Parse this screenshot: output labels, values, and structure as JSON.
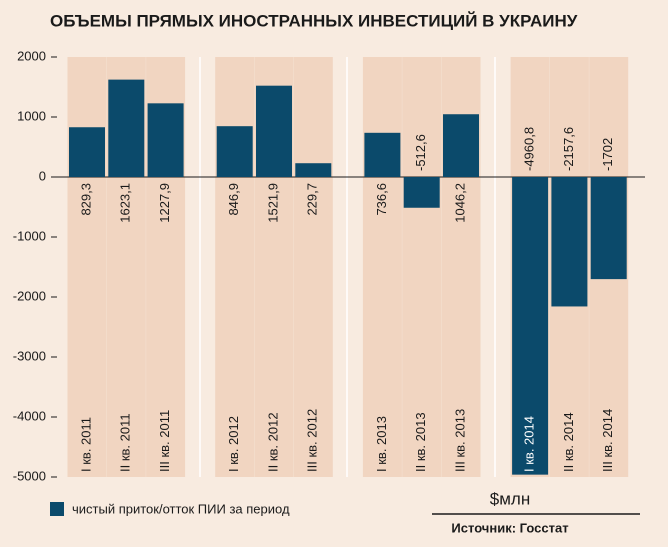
{
  "chart_data": {
    "type": "bar",
    "title": "ОБЪЕМЫ ПРЯМЫХ ИНОСТРАННЫХ ИНВЕСТИЦИЙ В УКРАИНУ",
    "categories": [
      "I кв. 2011",
      "II кв. 2011",
      "III кв. 2011",
      "I кв. 2012",
      "II кв. 2012",
      "III кв. 2012",
      "I кв. 2013",
      "II кв. 2013",
      "III кв. 2013",
      "I кв. 2014",
      "II кв. 2014",
      "III кв. 2014"
    ],
    "series": [
      {
        "name": "чистый приток/отток ПИИ за период",
        "color": "#0b4a6b",
        "values": [
          829.3,
          1623.1,
          1227.9,
          846.9,
          1521.9,
          229.7,
          736.6,
          -512.6,
          1046.2,
          -4960.8,
          -2157.6,
          -1702
        ],
        "value_labels": [
          "829,3",
          "1623,1",
          "1227,9",
          "846,9",
          "1521,9",
          "229,7",
          "736,6",
          "-512,6",
          "1046,2",
          "-4960,8",
          "-2157,6",
          "-1702"
        ]
      }
    ],
    "ylim": [
      -5000,
      2000
    ],
    "yticks": [
      -5000,
      -4000,
      -3000,
      -2000,
      -1000,
      0,
      1000,
      2000
    ],
    "unit": "$млн",
    "source": "Источник: Госстат"
  }
}
